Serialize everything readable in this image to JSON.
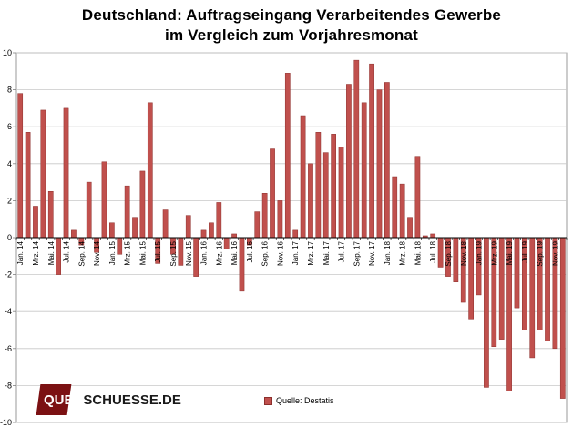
{
  "title_line1": "Deutschland: Auftragseingang Verarbeitendes Gewerbe",
  "title_line2": "im Vergleich zum Vorjahresmonat",
  "logo": {
    "part1": "QUER",
    "part2": "SCHUESSE.DE"
  },
  "colors": {
    "bar": "#c0504d",
    "bar_edge": "#8c2f2c",
    "grid": "#c8c8c8",
    "axis": "#808080"
  },
  "chart_data": {
    "type": "bar",
    "title": "Deutschland: Auftragseingang Verarbeitendes Gewerbe im Vergleich zum Vorjahresmonat",
    "xlabel": "",
    "ylabel": "",
    "ylim": [
      -10,
      10
    ],
    "yticks": [
      -10,
      -8,
      -6,
      -4,
      -2,
      0,
      2,
      4,
      6,
      8,
      10
    ],
    "grid": true,
    "legend_position": "bottom",
    "tick_labels": [
      "Jan. 14",
      "Mrz. 14",
      "Mai. 14",
      "Jul. 14",
      "Sep. 14",
      "Nov. 14",
      "Jan. 15",
      "Mrz. 15",
      "Mai. 15",
      "Jul. 15",
      "Sep. 15",
      "Nov. 15",
      "Jan. 16",
      "Mrz. 16",
      "Mai. 16",
      "Jul. 16",
      "Sep. 16",
      "Nov. 16",
      "Jan. 17",
      "Mrz. 17",
      "Mai. 17",
      "Jul. 17",
      "Sep. 17",
      "Nov. 17",
      "Jan. 18",
      "Mrz. 18",
      "Mai. 18",
      "Jul. 18",
      "Sep. 18",
      "Nov. 18",
      "Jan. 19",
      "Mrz. 19",
      "Mai. 19",
      "Jul. 19",
      "Sep. 19",
      "Nov. 19"
    ],
    "series": [
      {
        "name": "Quelle: Destatis",
        "values": [
          7.8,
          5.7,
          1.7,
          6.9,
          2.5,
          -2.0,
          7.0,
          0.4,
          -0.4,
          3.0,
          -0.8,
          4.1,
          0.8,
          -0.9,
          2.8,
          1.1,
          3.6,
          7.3,
          -1.4,
          1.5,
          -0.9,
          -1.5,
          1.2,
          -2.1,
          0.4,
          0.8,
          1.9,
          -0.6,
          0.2,
          -2.9,
          -0.4,
          1.4,
          2.4,
          4.8,
          2.0,
          8.9,
          0.4,
          6.6,
          4.0,
          5.7,
          4.6,
          5.6,
          4.9,
          8.3,
          9.6,
          7.3,
          9.4,
          8.0,
          8.4,
          3.3,
          2.9,
          1.1,
          4.4,
          0.1,
          0.2,
          -1.6,
          -2.1,
          -2.4,
          -3.5,
          -4.4,
          -3.1,
          -8.1,
          -5.9,
          -5.5,
          -8.3,
          -3.8,
          -5.0,
          -6.5,
          -5.0,
          -5.6,
          -6.0,
          -8.7
        ]
      }
    ]
  }
}
